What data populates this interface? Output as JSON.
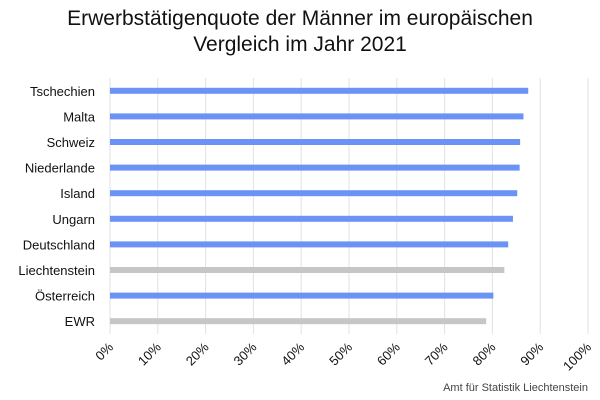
{
  "chart_data": {
    "type": "bar",
    "orientation": "horizontal",
    "title": "Erwerbstätigenquote der Männer im europäischen Vergleich im Jahr 2021",
    "title_lines": [
      "Erwerbstätigenquote der Männer im europäischen",
      "Vergleich im Jahr 2021"
    ],
    "categories": [
      "Tschechien",
      "Malta",
      "Schweiz",
      "Niederlande",
      "Island",
      "Ungarn",
      "Deutschland",
      "Liechtenstein",
      "Österreich",
      "EWR"
    ],
    "values": [
      87.5,
      86.5,
      85.8,
      85.7,
      85.2,
      84.3,
      83.3,
      82.5,
      80.2,
      78.7
    ],
    "bar_colors": [
      "#6b93f6",
      "#6b93f6",
      "#6b93f6",
      "#6b93f6",
      "#6b93f6",
      "#6b93f6",
      "#6b93f6",
      "#c6c6c6",
      "#6b93f6",
      "#c6c6c6"
    ],
    "xlim": [
      0,
      100
    ],
    "xticks": [
      0,
      10,
      20,
      30,
      40,
      50,
      60,
      70,
      80,
      90,
      100
    ],
    "xtick_labels": [
      "0%",
      "10%",
      "20%",
      "30%",
      "40%",
      "50%",
      "60%",
      "70%",
      "80%",
      "90%",
      "100%"
    ],
    "xlabel": "",
    "ylabel": "",
    "grid": "vertical",
    "legend": "none"
  },
  "source": "Amt für Statistik Liechtenstein"
}
